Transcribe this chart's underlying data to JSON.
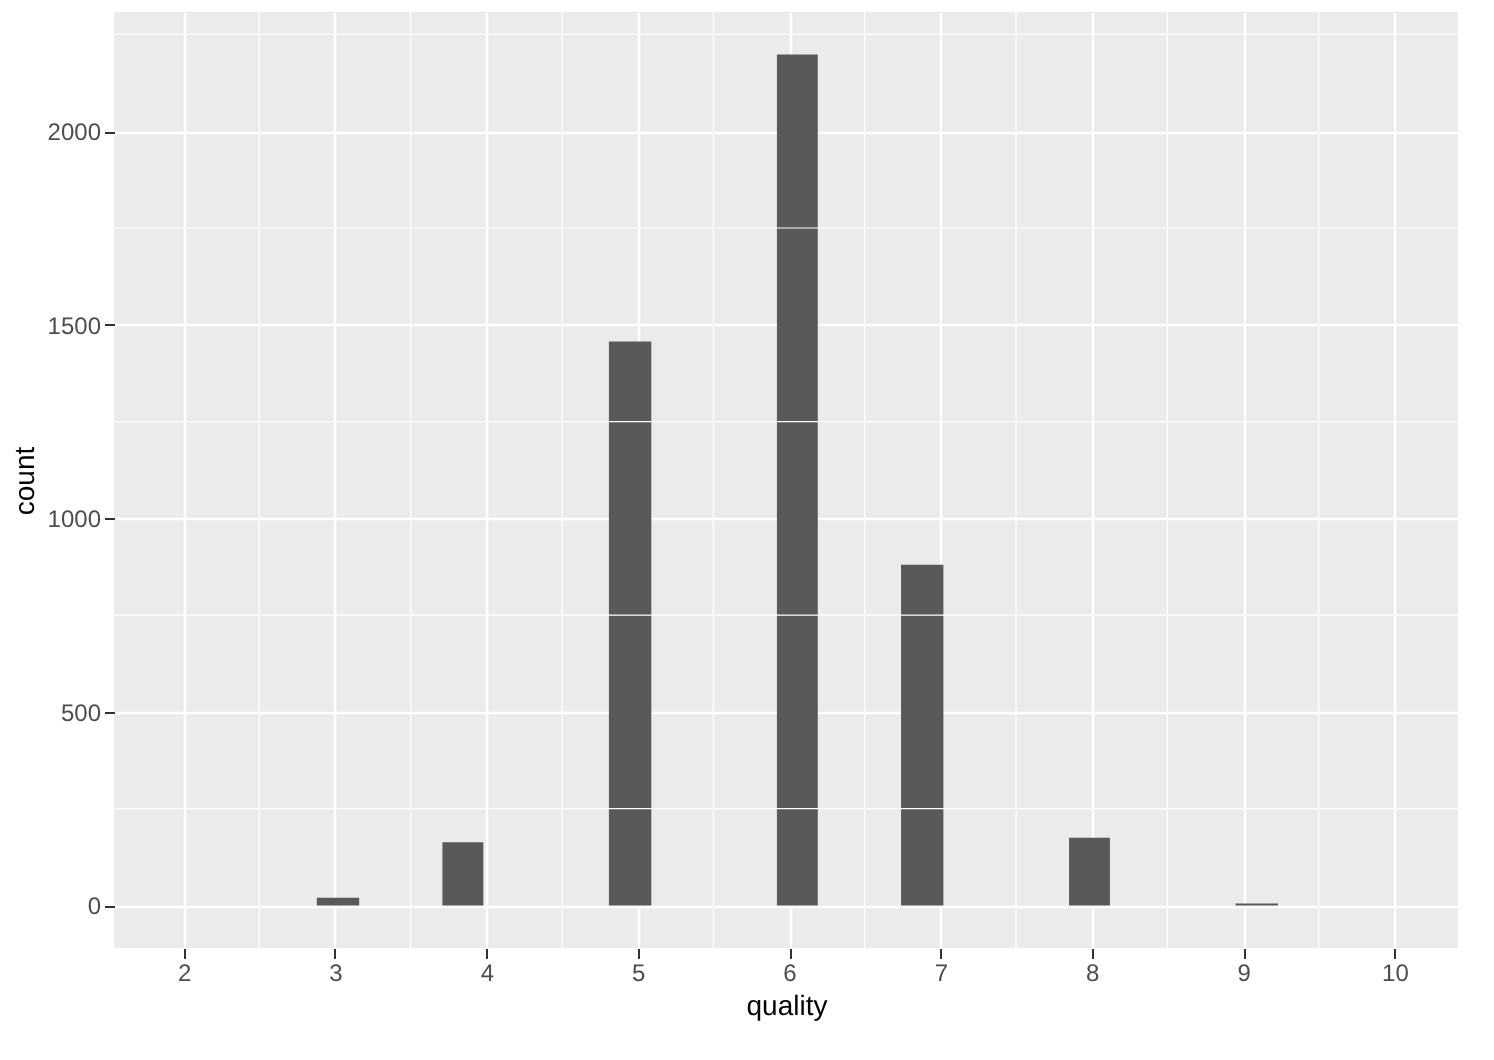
{
  "chart_data": {
    "type": "histogram",
    "xlabel": "quality",
    "ylabel": "count",
    "bins": [
      2.88,
      3.16,
      3.71,
      3.98,
      4.81,
      5.09,
      5.92,
      6.19,
      6.74,
      7.02,
      7.85,
      8.12,
      8.95,
      9.23
    ],
    "values": [
      20,
      0,
      163,
      0,
      1457,
      0,
      2198,
      0,
      880,
      0,
      175,
      0,
      5
    ],
    "color": "#595959",
    "xlim": [
      1.54,
      10.42
    ],
    "xticks": [
      2,
      3,
      4,
      5,
      6,
      7,
      8,
      9,
      10
    ],
    "ylim": [
      -110,
      2308
    ],
    "yticks": [
      0,
      500,
      1000,
      1500,
      2000
    ],
    "grid": true
  }
}
